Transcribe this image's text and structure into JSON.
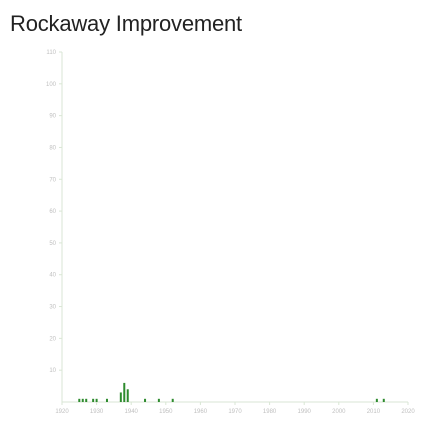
{
  "title": "Rockaway Improvement",
  "chart_data": {
    "type": "bar",
    "title": "Rockaway Improvement",
    "xlabel": "",
    "ylabel": "",
    "xlim": [
      1920,
      2020
    ],
    "ylim": [
      0,
      110
    ],
    "x_ticks": [
      1920,
      1930,
      1940,
      1950,
      1960,
      1970,
      1980,
      1990,
      2000,
      2010,
      2020
    ],
    "y_ticks": [
      10,
      20,
      30,
      40,
      50,
      60,
      70,
      80,
      90,
      100,
      110
    ],
    "grid": false,
    "color": "#2e8b2e",
    "axis_color": "#d9e6d4",
    "tick_color": "#bfbfbf",
    "x": [
      1925,
      1926,
      1927,
      1929,
      1930,
      1933,
      1937,
      1938,
      1939,
      1944,
      1948,
      1952,
      2011,
      2013
    ],
    "values": [
      1,
      1,
      1,
      1,
      1,
      1,
      3,
      6,
      4,
      1,
      1,
      1,
      1,
      1
    ]
  }
}
